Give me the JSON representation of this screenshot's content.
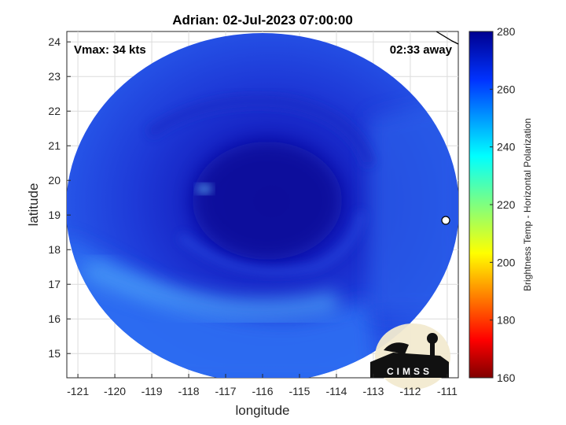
{
  "chart_data": {
    "type": "heatmap",
    "title": "Adrian: 02-Jul-2023 07:00:00",
    "xlabel": "longitude",
    "ylabel": "latitude",
    "xlim": [
      -121.3,
      -110.7
    ],
    "ylim": [
      14.3,
      24.3
    ],
    "x_ticks": [
      -121,
      -120,
      -119,
      -118,
      -117,
      -116,
      -115,
      -114,
      -113,
      -112,
      -111
    ],
    "y_ticks": [
      15,
      16,
      17,
      18,
      19,
      20,
      21,
      22,
      23,
      24
    ],
    "grid": true,
    "annotations": {
      "vmax": "Vmax: 34 kts",
      "time_away": "02:33 away"
    },
    "colorbar": {
      "label": "Brightness Temp - Horizontal Polarization",
      "range": [
        160,
        280
      ],
      "ticks": [
        160,
        180,
        200,
        220,
        240,
        260,
        280
      ],
      "colormap": "jet",
      "placement": "right"
    },
    "field": {
      "description_values": "brightness temperature (K)",
      "center_lon": -116.3,
      "center_lat": 19.7,
      "core_value": 272,
      "outer_value": 255,
      "south_band_value": 248
    }
  },
  "logo": {
    "text": "CIMSS"
  },
  "colors": {
    "core": "#1219b8",
    "mid": "#1c35d8",
    "outer": "#2a66f0",
    "band": "#3f8df5"
  }
}
